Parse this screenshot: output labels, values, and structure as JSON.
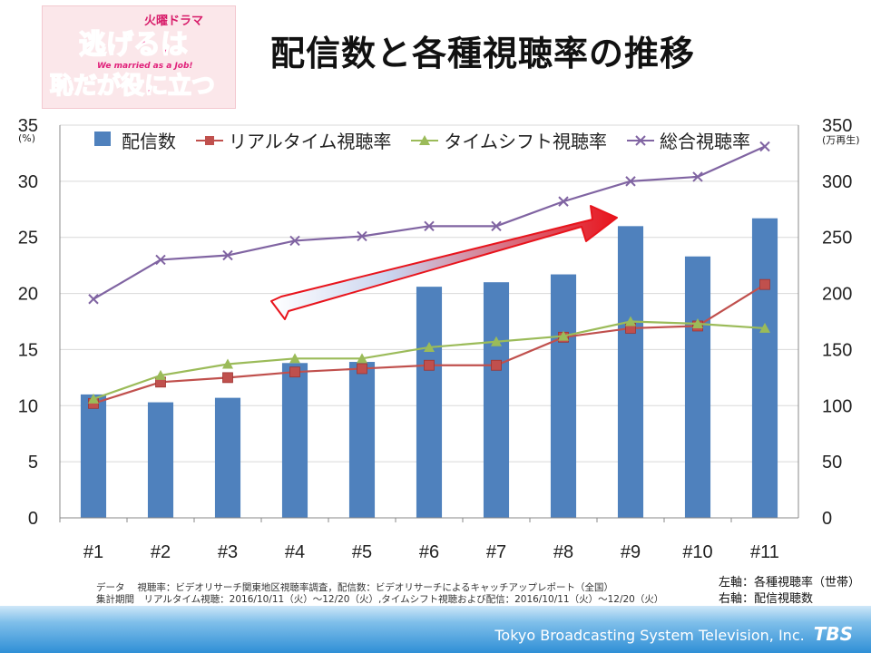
{
  "logo": {
    "top_label": "火曜ドラマ",
    "line1": "逃げるは",
    "line2": "恥だが役に立つ",
    "subtitle": "We married as a Job!"
  },
  "page_title": "配信数と各種視聴率の推移",
  "chart_data": {
    "type": "bar",
    "categories": [
      "#1",
      "#2",
      "#3",
      "#4",
      "#5",
      "#6",
      "#7",
      "#8",
      "#9",
      "#10",
      "#11"
    ],
    "left_axis": {
      "unit": "(%)",
      "ylim": [
        0,
        35
      ],
      "ticks": [
        0,
        5,
        10,
        15,
        20,
        25,
        30,
        35
      ]
    },
    "right_axis": {
      "unit": "(万再生)",
      "ylim": [
        0,
        350
      ],
      "ticks": [
        0,
        50,
        100,
        150,
        200,
        250,
        300,
        350
      ]
    },
    "series": [
      {
        "name": "配信数",
        "type": "bar",
        "axis": "right",
        "color": "#4f81bd",
        "values": [
          110,
          103,
          107,
          138,
          139,
          206,
          210,
          217,
          260,
          233,
          267
        ]
      },
      {
        "name": "リアルタイム視聴率",
        "type": "line",
        "axis": "left",
        "color": "#c0504d",
        "marker": "square",
        "values": [
          10.2,
          12.1,
          12.5,
          13.0,
          13.3,
          13.6,
          13.6,
          16.1,
          16.9,
          17.1,
          20.8
        ]
      },
      {
        "name": "タイムシフト視聴率",
        "type": "line",
        "axis": "left",
        "color": "#9bbb59",
        "marker": "triangle",
        "values": [
          10.6,
          12.7,
          13.7,
          14.2,
          14.2,
          15.2,
          15.7,
          16.2,
          17.5,
          17.3,
          16.9
        ]
      },
      {
        "name": "総合視聴率",
        "type": "line",
        "axis": "left",
        "color": "#8064a2",
        "marker": "x",
        "values": [
          19.5,
          23.0,
          23.4,
          24.7,
          25.1,
          26.0,
          26.0,
          28.2,
          30.0,
          30.4,
          33.1
        ]
      }
    ],
    "grid": "horizontal"
  },
  "notes": {
    "line1": "データ　 視聴率：ビデオリサーチ関東地区視聴率調査，配信数：ビデオリサーチによるキャッチアップレポート（全国）",
    "line2": "集計期間　リアルタイム視聴：2016/10/11（火）～12/20（火）,タイムシフト視聴および配信：2016/10/11（火）～12/20（火）"
  },
  "axis_note": {
    "left": "左軸：各種視聴率（世帯）",
    "right": "右軸：配信視聴数"
  },
  "footer": {
    "company": "Tokyo Broadcasting System Television, Inc.",
    "brand": "TBS"
  }
}
